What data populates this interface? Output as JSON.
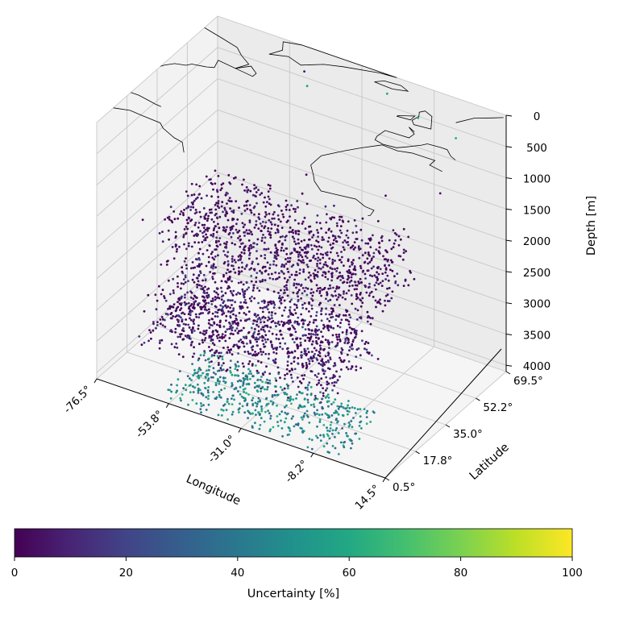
{
  "chart_data": {
    "type": "scatter",
    "projection": "3d",
    "xlabel": "Longitude",
    "ylabel": "Latitude",
    "zlabel": "Depth [m]",
    "x_ticks": [
      "-76.5°",
      "-53.8°",
      "-31.0°",
      "-8.2°",
      "14.5°"
    ],
    "x_tick_values": [
      -76.5,
      -53.8,
      -31.0,
      -8.2,
      14.5
    ],
    "y_ticks": [
      "0.5°",
      "17.8°",
      "35.0°",
      "52.2°",
      "69.5°"
    ],
    "y_tick_values": [
      0.5,
      17.8,
      35.0,
      52.2,
      69.5
    ],
    "z_ticks": [
      "0",
      "500",
      "1000",
      "1500",
      "2000",
      "2500",
      "3000",
      "3500",
      "4000"
    ],
    "z_tick_values": [
      0,
      500,
      1000,
      1500,
      2000,
      2500,
      3000,
      3500,
      4000
    ],
    "xlim": [
      -76.5,
      14.5
    ],
    "ylim": [
      0.5,
      69.5
    ],
    "zlim": [
      4100,
      0
    ],
    "z_inverted": true,
    "grid": true,
    "colormap": "viridis",
    "colorbar": {
      "label": "Uncertainty [%]",
      "ticks": [
        "0",
        "20",
        "40",
        "60",
        "80",
        "100"
      ],
      "range": [
        0,
        100
      ],
      "placement": "bottom"
    },
    "clusters": [
      {
        "lon": [
          -72,
          -8
        ],
        "lat": [
          25,
          60
        ],
        "depth": [
          2000,
          2900
        ],
        "uncertainty": [
          0,
          15
        ]
      },
      {
        "lon": [
          -70,
          -12
        ],
        "lat": [
          12,
          45
        ],
        "depth": [
          3000,
          3800
        ],
        "uncertainty": [
          0,
          25
        ]
      },
      {
        "lon": [
          -55,
          0
        ],
        "lat": [
          0.5,
          25
        ],
        "depth": [
          3800,
          4100
        ],
        "uncertainty": [
          30,
          65
        ]
      }
    ],
    "shallow_points": [
      {
        "lon": -45,
        "lat": 62,
        "depth": 150,
        "u": 5
      },
      {
        "lon": -43,
        "lat": 60,
        "depth": 300,
        "u": 55
      },
      {
        "lon": -20,
        "lat": 64,
        "depth": 120,
        "u": 60
      },
      {
        "lon": -8,
        "lat": 60,
        "depth": 200,
        "u": 58
      },
      {
        "lon": 5,
        "lat": 58,
        "depth": 250,
        "u": 60
      },
      {
        "lon": 10,
        "lat": 40,
        "depth": 600,
        "u": 3
      },
      {
        "lon": -5,
        "lat": 36,
        "depth": 800,
        "u": 2
      },
      {
        "lon": -30,
        "lat": 36,
        "depth": 900,
        "u": 4
      },
      {
        "lon": -60,
        "lat": 25,
        "depth": 1300,
        "u": 3
      },
      {
        "lon": -70,
        "lat": 15,
        "depth": 1800,
        "u": 2
      }
    ]
  },
  "overlay": "coastlines"
}
